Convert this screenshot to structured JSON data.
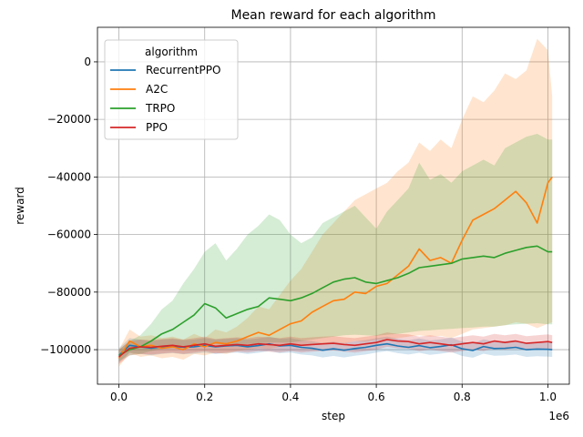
{
  "chart_data": {
    "type": "line",
    "title": "Mean reward for each algorithm",
    "xlabel": "step",
    "ylabel": "reward",
    "x_offset_label": "1e6",
    "xlim": [
      -50000,
      1050000
    ],
    "ylim": [
      -112000,
      12000
    ],
    "x_ticks": [
      0,
      200000,
      400000,
      600000,
      800000,
      1000000
    ],
    "x_tick_labels": [
      "0.0",
      "0.2",
      "0.4",
      "0.6",
      "0.8",
      "1.0"
    ],
    "y_ticks": [
      -100000,
      -80000,
      -60000,
      -40000,
      -20000,
      0
    ],
    "y_tick_labels": [
      "−100000",
      "−80000",
      "−60000",
      "−40000",
      "−20000",
      "0"
    ],
    "grid": true,
    "legend_title": "algorithm",
    "legend_position": "upper-left",
    "x": [
      0,
      25000,
      50000,
      75000,
      100000,
      125000,
      150000,
      175000,
      200000,
      225000,
      250000,
      275000,
      300000,
      325000,
      350000,
      375000,
      400000,
      425000,
      450000,
      475000,
      500000,
      525000,
      550000,
      575000,
      600000,
      625000,
      650000,
      675000,
      700000,
      725000,
      750000,
      775000,
      800000,
      825000,
      850000,
      875000,
      900000,
      925000,
      950000,
      975000,
      1000000,
      1010000
    ],
    "series": [
      {
        "name": "RecurrentPPO",
        "color": "#1f77b4",
        "values": [
          -102000,
          -98500,
          -99000,
          -99500,
          -99000,
          -98800,
          -99200,
          -99000,
          -98500,
          -99000,
          -98700,
          -98500,
          -99000,
          -98600,
          -98000,
          -98700,
          -98500,
          -99200,
          -99500,
          -100200,
          -99700,
          -100200,
          -99600,
          -99200,
          -98500,
          -98000,
          -98700,
          -99200,
          -98600,
          -99300,
          -98900,
          -98300,
          -99700,
          -100300,
          -98900,
          -99600,
          -99500,
          -99200,
          -100000,
          -99800,
          -99900,
          -100000
        ],
        "lower": [
          -104500,
          -101000,
          -101500,
          -102000,
          -101500,
          -101200,
          -101600,
          -101400,
          -101000,
          -101500,
          -101200,
          -101000,
          -101500,
          -101100,
          -100500,
          -101200,
          -101000,
          -101700,
          -102000,
          -102700,
          -102200,
          -102700,
          -102100,
          -101700,
          -101000,
          -100500,
          -101200,
          -101700,
          -101100,
          -101800,
          -101400,
          -100800,
          -102200,
          -102800,
          -101400,
          -102100,
          -102000,
          -101700,
          -102500,
          -102300,
          -102400,
          -102500
        ],
        "upper": [
          -99500,
          -96000,
          -96500,
          -97000,
          -96500,
          -96300,
          -96700,
          -96500,
          -96000,
          -96500,
          -96200,
          -96000,
          -96500,
          -96100,
          -95500,
          -96200,
          -96000,
          -96700,
          -97000,
          -97700,
          -97200,
          -97700,
          -97100,
          -96700,
          -96000,
          -95500,
          -96200,
          -96700,
          -96100,
          -96800,
          -96400,
          -95800,
          -97200,
          -97800,
          -96400,
          -97100,
          -97000,
          -96700,
          -97500,
          -97300,
          -97400,
          -97500
        ]
      },
      {
        "name": "A2C",
        "color": "#ff7f0e",
        "values": [
          -103000,
          -97000,
          -99000,
          -98500,
          -99500,
          -99000,
          -100000,
          -98000,
          -99000,
          -97500,
          -98000,
          -97000,
          -95500,
          -94000,
          -95000,
          -93000,
          -91000,
          -90000,
          -87000,
          -85000,
          -83000,
          -82500,
          -80000,
          -80500,
          -78000,
          -77000,
          -74000,
          -71000,
          -65000,
          -69000,
          -68000,
          -70000,
          -62000,
          -55000,
          -53000,
          -51000,
          -48000,
          -45000,
          -49000,
          -56000,
          -42000,
          -40000
        ],
        "lower": [
          -106000,
          -101000,
          -102500,
          -102000,
          -103000,
          -102500,
          -103500,
          -101500,
          -102000,
          -101000,
          -101500,
          -100500,
          -100000,
          -99500,
          -99800,
          -99000,
          -98500,
          -98700,
          -98000,
          -97800,
          -97500,
          -97800,
          -97000,
          -97200,
          -96500,
          -96700,
          -96000,
          -95500,
          -95000,
          -95500,
          -95200,
          -96000,
          -94500,
          -93000,
          -92500,
          -92000,
          -91500,
          -90500,
          -91000,
          -92500,
          -91000,
          -90500
        ],
        "upper": [
          -100000,
          -93000,
          -95500,
          -95000,
          -96000,
          -95500,
          -96500,
          -94500,
          -96000,
          -93000,
          -94000,
          -92000,
          -89000,
          -85000,
          -86000,
          -81000,
          -76000,
          -72000,
          -66000,
          -60000,
          -56000,
          -52000,
          -48000,
          -46000,
          -44000,
          -42000,
          -38000,
          -35000,
          -28000,
          -31000,
          -27000,
          -30000,
          -20000,
          -12000,
          -14000,
          -10000,
          -4000,
          -6000,
          -3000,
          8000,
          4000,
          -12000
        ]
      },
      {
        "name": "TRPO",
        "color": "#2ca02c",
        "values": [
          -102000,
          -100000,
          -99000,
          -97000,
          -94500,
          -93000,
          -90500,
          -88000,
          -84000,
          -85500,
          -89000,
          -87500,
          -86000,
          -85000,
          -82000,
          -82500,
          -83000,
          -82000,
          -80500,
          -78500,
          -76500,
          -75500,
          -75000,
          -76500,
          -77000,
          -76000,
          -75000,
          -73500,
          -71500,
          -71000,
          -70500,
          -70000,
          -68500,
          -68000,
          -67500,
          -68000,
          -66500,
          -65500,
          -64500,
          -64000,
          -66000,
          -66000
        ],
        "lower": [
          -104000,
          -102000,
          -101500,
          -100500,
          -99800,
          -99500,
          -99000,
          -98500,
          -98000,
          -98000,
          -98500,
          -98200,
          -98000,
          -97800,
          -97500,
          -97500,
          -97500,
          -97000,
          -96500,
          -96000,
          -95500,
          -95000,
          -94800,
          -95000,
          -95200,
          -94800,
          -94500,
          -94000,
          -93500,
          -93300,
          -93000,
          -92800,
          -92500,
          -92300,
          -92000,
          -92000,
          -91500,
          -91200,
          -91000,
          -90800,
          -91200,
          -91200
        ],
        "upper": [
          -100000,
          -97000,
          -95000,
          -91000,
          -86000,
          -83000,
          -77000,
          -72000,
          -66000,
          -63000,
          -69000,
          -65000,
          -60000,
          -57000,
          -53000,
          -55000,
          -60000,
          -63000,
          -61000,
          -56000,
          -54000,
          -52000,
          -50000,
          -54000,
          -58000,
          -52000,
          -48000,
          -44000,
          -35000,
          -41000,
          -39000,
          -42000,
          -38000,
          -36000,
          -34000,
          -36000,
          -30000,
          -28000,
          -26000,
          -25000,
          -27000,
          -27000
        ],
        "_note": ""
      },
      {
        "name": "PPO",
        "color": "#d62728",
        "values": [
          -102500,
          -99500,
          -99000,
          -99200,
          -98800,
          -98500,
          -99000,
          -98500,
          -98000,
          -98800,
          -98500,
          -98200,
          -98500,
          -98000,
          -98200,
          -98500,
          -98000,
          -98500,
          -98200,
          -98000,
          -97800,
          -98200,
          -98500,
          -98000,
          -97500,
          -96500,
          -97000,
          -97200,
          -98000,
          -97500,
          -98000,
          -98500,
          -98000,
          -97500,
          -98000,
          -97000,
          -97500,
          -97000,
          -97800,
          -97500,
          -97200,
          -97500
        ],
        "lower": [
          -105000,
          -102000,
          -101500,
          -101700,
          -101300,
          -101000,
          -101500,
          -101000,
          -100500,
          -101300,
          -101000,
          -100700,
          -101000,
          -100500,
          -100700,
          -101000,
          -100500,
          -101000,
          -100700,
          -100500,
          -100300,
          -100700,
          -101000,
          -100500,
          -100000,
          -99000,
          -99500,
          -99700,
          -100500,
          -100000,
          -100500,
          -101000,
          -100500,
          -100000,
          -100500,
          -99500,
          -100000,
          -99500,
          -100300,
          -100000,
          -99700,
          -100000
        ],
        "upper": [
          -100000,
          -97000,
          -96500,
          -96700,
          -96300,
          -96000,
          -96500,
          -96000,
          -95500,
          -96300,
          -96000,
          -95700,
          -96000,
          -95500,
          -95700,
          -96000,
          -95500,
          -96000,
          -95700,
          -95500,
          -95300,
          -95700,
          -96000,
          -95500,
          -95000,
          -94000,
          -94500,
          -94700,
          -95500,
          -95000,
          -95500,
          -96000,
          -95500,
          -95000,
          -95500,
          -94500,
          -95000,
          -94500,
          -95300,
          -95000,
          -94700,
          -95000
        ]
      }
    ]
  }
}
